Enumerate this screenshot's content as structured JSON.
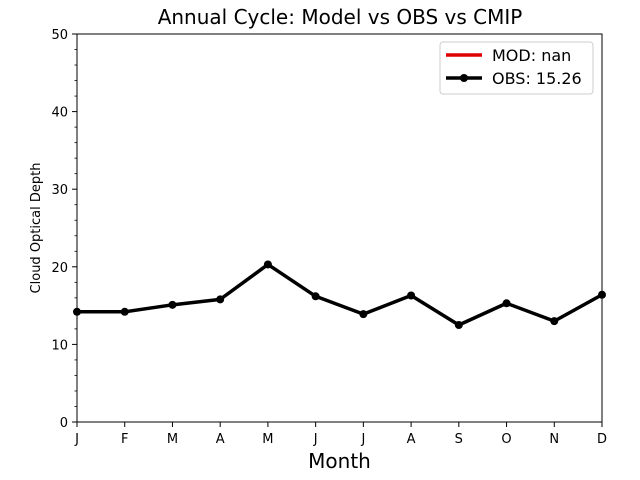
{
  "chart_data": {
    "type": "line",
    "title": "Annual Cycle: Model vs OBS vs CMIP",
    "xlabel": "Month",
    "ylabel": "Cloud Optical Depth",
    "categories": [
      "J",
      "F",
      "M",
      "A",
      "M",
      "J",
      "J",
      "A",
      "S",
      "O",
      "N",
      "D"
    ],
    "ylim": [
      0,
      50
    ],
    "yticks": [
      "0",
      "10",
      "20",
      "30",
      "40",
      "50"
    ],
    "grid": false,
    "legend_position": "top-right",
    "series": [
      {
        "name": "MOD: nan",
        "color": "#e00000",
        "marker": "none",
        "values": [
          null,
          null,
          null,
          null,
          null,
          null,
          null,
          null,
          null,
          null,
          null,
          null
        ]
      },
      {
        "name": "OBS: 15.26",
        "color": "#000000",
        "marker": "circle",
        "values": [
          14.2,
          14.2,
          15.1,
          15.8,
          20.3,
          16.2,
          13.9,
          16.3,
          12.5,
          15.3,
          13.0,
          16.4
        ]
      }
    ]
  }
}
